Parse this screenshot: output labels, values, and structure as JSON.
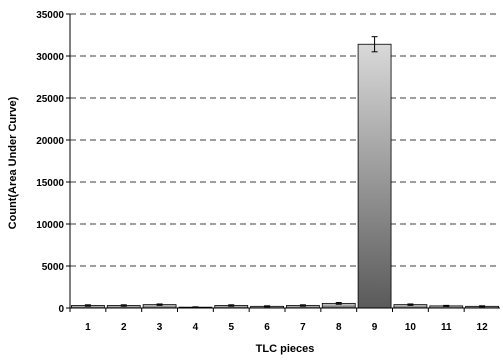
{
  "chart_data": {
    "type": "bar",
    "title": "",
    "xlabel": "TLC pieces",
    "ylabel": "Count(Area Under Curve)",
    "categories": [
      "1",
      "2",
      "3",
      "4",
      "5",
      "6",
      "7",
      "8",
      "9",
      "10",
      "11",
      "12"
    ],
    "values": [
      300,
      300,
      400,
      100,
      300,
      200,
      300,
      550,
      31400,
      400,
      250,
      200
    ],
    "error": [
      80,
      80,
      80,
      40,
      80,
      60,
      80,
      100,
      900,
      80,
      60,
      60
    ],
    "ylim": [
      0,
      35000
    ],
    "yticks": [
      0,
      5000,
      10000,
      15000,
      20000,
      25000,
      30000,
      35000
    ],
    "grid": true,
    "grid_style": "dashed",
    "legend": "none",
    "colors": {
      "bar_light": "#d9d9d9",
      "bar_dark": "#5a5a5a",
      "bar_stroke": "#000000",
      "axis": "#000000",
      "grid": "#000000"
    }
  }
}
